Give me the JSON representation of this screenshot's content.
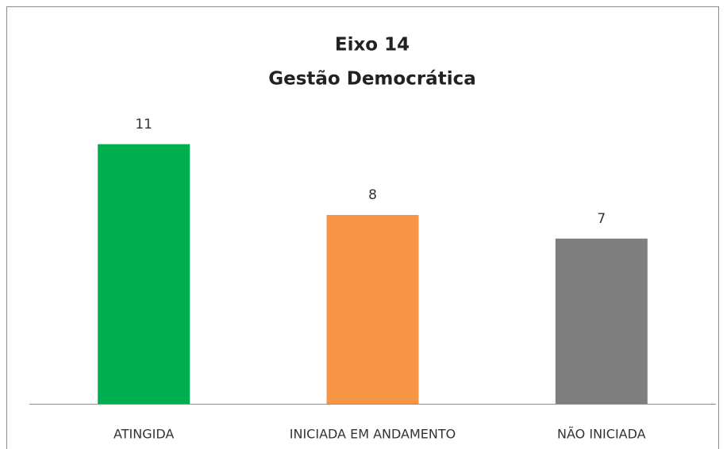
{
  "chart_data": {
    "type": "bar",
    "title": "Eixo 14",
    "subtitle": "Gestão Democrática",
    "categories": [
      "ATINGIDA",
      "INICIADA EM ANDAMENTO",
      "NÃO INICIADA"
    ],
    "values": [
      11,
      8,
      7
    ],
    "colors": [
      "#00b050",
      "#f79646",
      "#7f7f7f"
    ],
    "ylim": [
      0,
      16
    ]
  }
}
